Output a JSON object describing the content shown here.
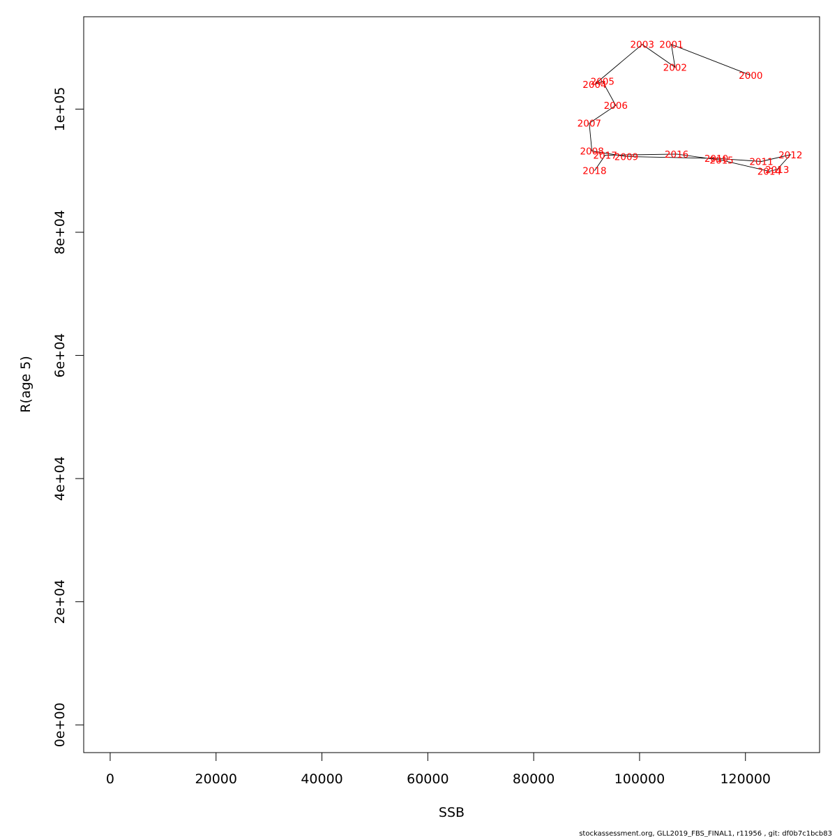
{
  "chart_data": {
    "type": "scatter",
    "title": "",
    "xlabel": "SSB",
    "ylabel": "R(age 5)",
    "xlim": [
      -5000,
      134000
    ],
    "ylim": [
      -4500,
      115000
    ],
    "x_ticks": [
      0,
      20000,
      40000,
      60000,
      80000,
      100000,
      120000
    ],
    "x_tick_labels": [
      "0",
      "20000",
      "40000",
      "60000",
      "80000",
      "100000",
      "120000"
    ],
    "y_ticks": [
      0,
      20000,
      40000,
      60000,
      80000,
      100000
    ],
    "y_tick_labels": [
      "0e+00",
      "2e+04",
      "4e+04",
      "6e+04",
      "8e+04",
      "1e+05"
    ],
    "grid": false,
    "line_color": "#000000",
    "label_color": "#ff0000",
    "points": [
      {
        "label": "2000",
        "x": 121000,
        "y": 105500
      },
      {
        "label": "2001",
        "x": 106000,
        "y": 110500
      },
      {
        "label": "2002",
        "x": 106700,
        "y": 106800
      },
      {
        "label": "2003",
        "x": 100500,
        "y": 110500
      },
      {
        "label": "2004",
        "x": 91500,
        "y": 104000
      },
      {
        "label": "2005",
        "x": 93000,
        "y": 104500
      },
      {
        "label": "2006",
        "x": 95500,
        "y": 100600
      },
      {
        "label": "2007",
        "x": 90500,
        "y": 97700
      },
      {
        "label": "2008",
        "x": 91000,
        "y": 93200
      },
      {
        "label": "2009",
        "x": 97500,
        "y": 92300
      },
      {
        "label": "2010",
        "x": 114500,
        "y": 92000
      },
      {
        "label": "2011",
        "x": 123000,
        "y": 91500
      },
      {
        "label": "2012",
        "x": 128500,
        "y": 92600
      },
      {
        "label": "2013",
        "x": 126000,
        "y": 90200
      },
      {
        "label": "2014",
        "x": 124500,
        "y": 89900
      },
      {
        "label": "2015",
        "x": 115500,
        "y": 91700
      },
      {
        "label": "2016",
        "x": 107000,
        "y": 92700
      },
      {
        "label": "2017",
        "x": 93500,
        "y": 92500
      },
      {
        "label": "2018",
        "x": 91500,
        "y": 90000
      }
    ]
  },
  "footer": "stockassessment.org, GLL2019_FBS_FINAL1, r11956 , git: df0b7c1bcb83"
}
